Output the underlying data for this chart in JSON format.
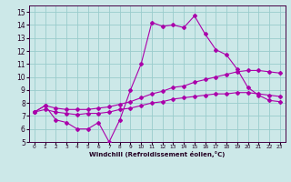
{
  "xlabel": "Windchill (Refroidissement éolien,°C)",
  "xlim": [
    -0.5,
    23.5
  ],
  "ylim": [
    5,
    15.5
  ],
  "xticks": [
    0,
    1,
    2,
    3,
    4,
    5,
    6,
    7,
    8,
    9,
    10,
    11,
    12,
    13,
    14,
    15,
    16,
    17,
    18,
    19,
    20,
    21,
    22,
    23
  ],
  "yticks": [
    5,
    6,
    7,
    8,
    9,
    10,
    11,
    12,
    13,
    14,
    15
  ],
  "bg_color": "#cce8e8",
  "line_color": "#aa00aa",
  "grid_color": "#99cccc",
  "curves": [
    {
      "x": [
        0,
        1,
        2,
        3,
        4,
        5,
        6,
        7,
        8,
        9,
        10,
        11,
        12,
        13,
        14,
        15,
        16,
        17,
        18,
        19,
        20,
        21,
        22,
        23
      ],
      "y": [
        7.3,
        7.8,
        6.7,
        6.5,
        6.0,
        6.0,
        6.5,
        5.0,
        6.7,
        9.0,
        11.0,
        14.2,
        13.9,
        14.0,
        13.8,
        14.7,
        13.3,
        12.1,
        11.7,
        10.6,
        9.2,
        8.6,
        8.2,
        8.1
      ]
    },
    {
      "x": [
        0,
        1,
        2,
        3,
        4,
        5,
        6,
        7,
        8,
        9,
        10,
        11,
        12,
        13,
        14,
        15,
        16,
        17,
        18,
        19,
        20,
        21,
        22,
        23
      ],
      "y": [
        7.3,
        7.8,
        7.6,
        7.5,
        7.5,
        7.5,
        7.6,
        7.7,
        7.9,
        8.1,
        8.4,
        8.7,
        8.9,
        9.2,
        9.3,
        9.6,
        9.8,
        10.0,
        10.2,
        10.4,
        10.5,
        10.5,
        10.4,
        10.3
      ]
    },
    {
      "x": [
        0,
        1,
        2,
        3,
        4,
        5,
        6,
        7,
        8,
        9,
        10,
        11,
        12,
        13,
        14,
        15,
        16,
        17,
        18,
        19,
        20,
        21,
        22,
        23
      ],
      "y": [
        7.3,
        7.5,
        7.3,
        7.2,
        7.1,
        7.2,
        7.2,
        7.3,
        7.5,
        7.6,
        7.8,
        8.0,
        8.1,
        8.3,
        8.4,
        8.5,
        8.6,
        8.7,
        8.7,
        8.8,
        8.8,
        8.7,
        8.6,
        8.5
      ]
    }
  ]
}
